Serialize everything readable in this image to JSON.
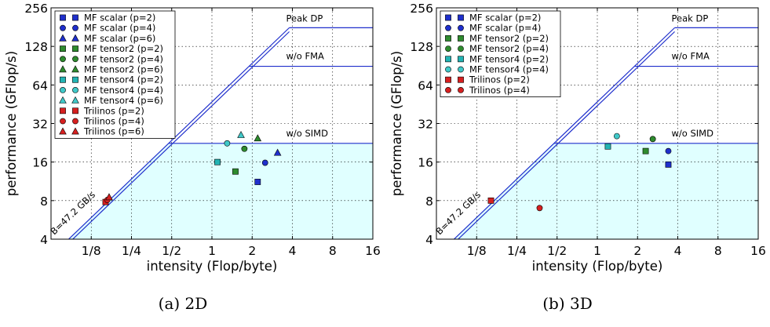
{
  "chart_data": [
    {
      "type": "scatter",
      "subtype": "roofline",
      "caption": "(a) 2D",
      "xlabel": "intensity (Flop/byte)",
      "ylabel": "performance (GFlop/s)",
      "xscale": "log2",
      "yscale": "log2",
      "xlim": [
        0.0625,
        16
      ],
      "ylim": [
        4,
        256
      ],
      "xticks": [
        "1/8",
        "1/4",
        "1/2",
        "1",
        "2",
        "4",
        "8",
        "16"
      ],
      "yticks": [
        "4",
        "8",
        "16",
        "32",
        "64",
        "128",
        "256"
      ],
      "grid": true,
      "legend_position": "top-left",
      "roofline": {
        "bandwidth_label": "B=47.2 GB/s",
        "ceilings": [
          {
            "label": "Peak DP",
            "value": 179
          },
          {
            "label": "w/o FMA",
            "value": 89.5
          },
          {
            "label": "w/o SIMD",
            "value": 22.4
          }
        ]
      },
      "series": [
        {
          "name": "MF scalar (p=2)",
          "color": "#1f2fcc",
          "marker": "square",
          "points": [
            [
              2.2,
              11.2
            ]
          ]
        },
        {
          "name": "MF scalar (p=4)",
          "color": "#1f2fcc",
          "marker": "circle",
          "points": [
            [
              2.5,
              15.8
            ]
          ]
        },
        {
          "name": "MF scalar (p=6)",
          "color": "#1f2fcc",
          "marker": "triangle",
          "points": [
            [
              3.1,
              18.9
            ]
          ]
        },
        {
          "name": "MF tensor2 (p=2)",
          "color": "#2e8b2e",
          "marker": "square",
          "points": [
            [
              1.5,
              13.5
            ]
          ]
        },
        {
          "name": "MF tensor2 (p=4)",
          "color": "#2e8b2e",
          "marker": "circle",
          "points": [
            [
              1.75,
              20.3
            ]
          ]
        },
        {
          "name": "MF tensor2 (p=6)",
          "color": "#2e8b2e",
          "marker": "triangle",
          "points": [
            [
              2.2,
              24.5
            ]
          ]
        },
        {
          "name": "MF tensor4 (p=2)",
          "color": "#22b3b3",
          "marker": "square",
          "points": [
            [
              1.1,
              16.0
            ]
          ]
        },
        {
          "name": "MF tensor4 (p=4)",
          "color": "#40c8c8",
          "marker": "circle",
          "points": [
            [
              1.3,
              22.4
            ]
          ]
        },
        {
          "name": "MF tensor4 (p=6)",
          "color": "#40c8c8",
          "marker": "triangle",
          "points": [
            [
              1.65,
              26.0
            ]
          ]
        },
        {
          "name": "Trilinos (p=2)",
          "color": "#d62020",
          "marker": "square",
          "points": [
            [
              0.16,
              7.8
            ]
          ]
        },
        {
          "name": "Trilinos (p=4)",
          "color": "#d62020",
          "marker": "circle",
          "points": [
            [
              0.165,
              8.1
            ]
          ]
        },
        {
          "name": "Trilinos (p=6)",
          "color": "#d62020",
          "marker": "triangle",
          "points": [
            [
              0.17,
              8.5
            ]
          ]
        }
      ]
    },
    {
      "type": "scatter",
      "subtype": "roofline",
      "caption": "(b) 3D",
      "xlabel": "intensity (Flop/byte)",
      "ylabel": "performance (GFlop/s)",
      "xscale": "log2",
      "yscale": "log2",
      "xlim": [
        0.0625,
        16
      ],
      "ylim": [
        4,
        256
      ],
      "xticks": [
        "1/8",
        "1/4",
        "1/2",
        "1",
        "2",
        "4",
        "8",
        "16"
      ],
      "yticks": [
        "4",
        "8",
        "16",
        "32",
        "64",
        "128",
        "256"
      ],
      "grid": true,
      "legend_position": "top-left",
      "roofline": {
        "bandwidth_label": "B=47.2 GB/s",
        "ceilings": [
          {
            "label": "Peak DP",
            "value": 179
          },
          {
            "label": "w/o FMA",
            "value": 89.5
          },
          {
            "label": "w/o SIMD",
            "value": 22.4
          }
        ]
      },
      "series": [
        {
          "name": "MF scalar (p=2)",
          "color": "#1f2fcc",
          "marker": "square",
          "points": [
            [
              3.4,
              15.3
            ]
          ]
        },
        {
          "name": "MF scalar (p=4)",
          "color": "#1f2fcc",
          "marker": "circle",
          "points": [
            [
              3.4,
              19.5
            ]
          ]
        },
        {
          "name": "MF tensor2 (p=2)",
          "color": "#2e8b2e",
          "marker": "square",
          "points": [
            [
              2.3,
              19.5
            ]
          ]
        },
        {
          "name": "MF tensor2 (p=4)",
          "color": "#2e8b2e",
          "marker": "circle",
          "points": [
            [
              2.6,
              24.2
            ]
          ]
        },
        {
          "name": "MF tensor4 (p=2)",
          "color": "#22b3b3",
          "marker": "square",
          "points": [
            [
              1.2,
              21.2
            ]
          ]
        },
        {
          "name": "MF tensor4 (p=4)",
          "color": "#40c8c8",
          "marker": "circle",
          "points": [
            [
              1.4,
              25.5
            ]
          ]
        },
        {
          "name": "Trilinos (p=2)",
          "color": "#d62020",
          "marker": "square",
          "points": [
            [
              0.16,
              8.0
            ]
          ]
        },
        {
          "name": "Trilinos (p=4)",
          "color": "#d62020",
          "marker": "circle",
          "points": [
            [
              0.37,
              7.0
            ]
          ]
        }
      ]
    }
  ]
}
